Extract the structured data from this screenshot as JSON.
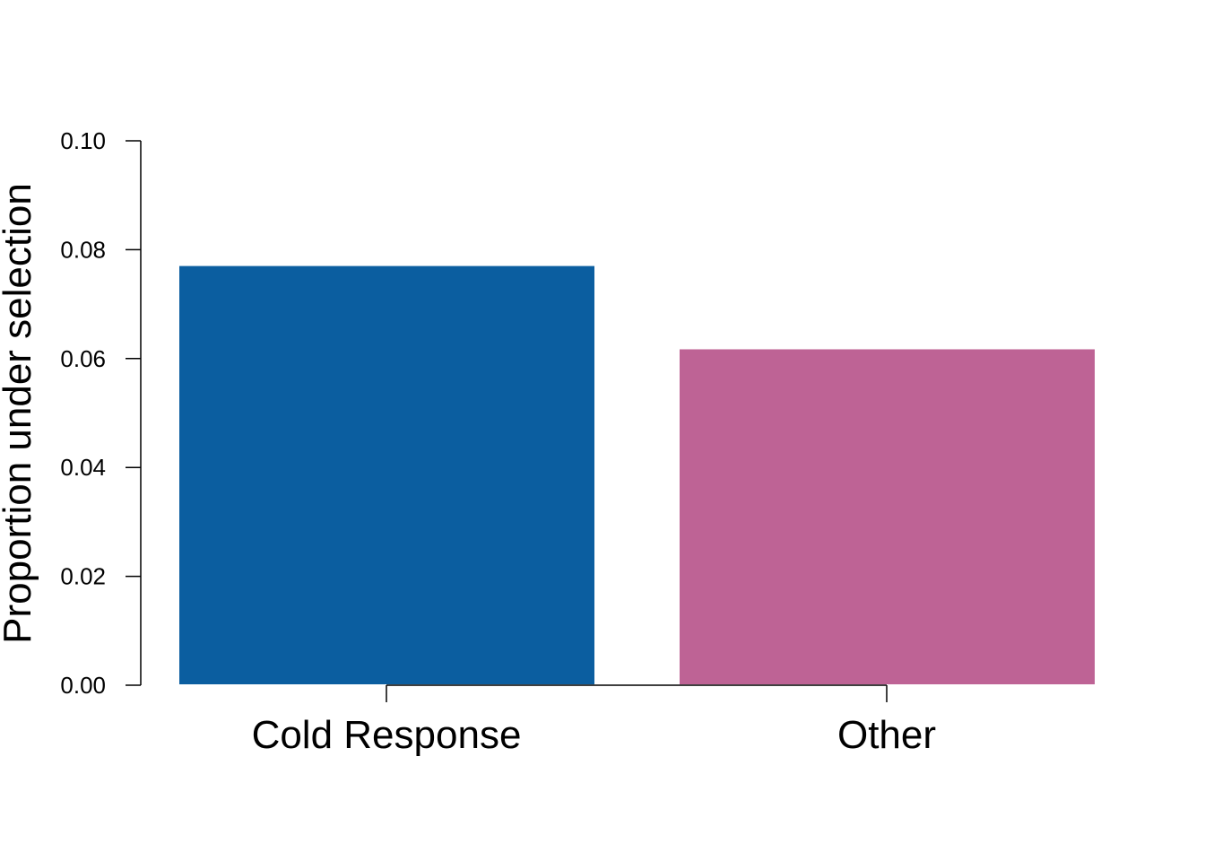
{
  "chart_data": {
    "type": "bar",
    "categories": [
      "Cold Response",
      "Other"
    ],
    "values": [
      0.077,
      0.0617
    ],
    "title": "",
    "xlabel": "",
    "ylabel": "Proportion under selection",
    "ylim": [
      0,
      0.1
    ],
    "yticks": [
      "0.00",
      "0.02",
      "0.04",
      "0.06",
      "0.08",
      "0.10"
    ],
    "colors": [
      "#0b5ea0",
      "#be6395"
    ],
    "grid": false,
    "legend": "none"
  }
}
